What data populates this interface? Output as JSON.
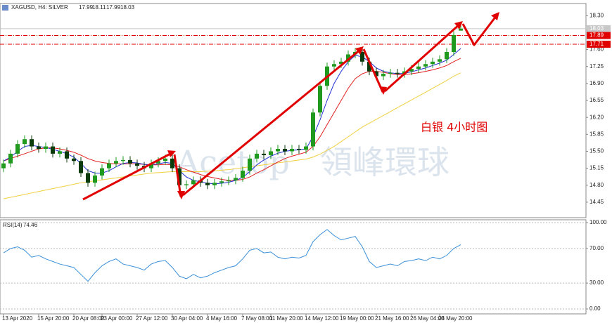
{
  "chart_data": {
    "type": "candlestick",
    "title": "XAGUSD, H4:  SILVER",
    "categories": [
      "13 Apr 2020",
      null,
      null,
      null,
      null,
      "15 Apr 20:00",
      null,
      null,
      null,
      null,
      "20 Apr 08:00",
      null,
      null,
      null,
      "23 Apr 00:00",
      null,
      null,
      null,
      null,
      "27 Apr 12:00",
      null,
      null,
      null,
      null,
      "30 Apr 04:00",
      null,
      null,
      null,
      null,
      "4 May 16:00",
      null,
      null,
      null,
      null,
      "7 May 08:00",
      null,
      null,
      null,
      "11 May 20:00",
      null,
      null,
      null,
      null,
      "14 May 12:00",
      null,
      null,
      null,
      null,
      "19 May 00:00",
      null,
      null,
      null,
      null,
      "21 May 16:00",
      null,
      null,
      null,
      null,
      "26 May 04:00",
      null,
      null,
      null,
      "28 May 20:00",
      null,
      null,
      null
    ],
    "open": [
      15.15,
      15.25,
      15.45,
      15.65,
      15.75,
      15.6,
      15.55,
      15.6,
      15.45,
      15.5,
      15.35,
      15.3,
      15.05,
      14.85,
      15.0,
      15.15,
      15.25,
      15.3,
      15.32,
      15.25,
      15.2,
      15.15,
      15.25,
      15.3,
      15.35,
      15.15,
      14.8,
      14.82,
      14.9,
      14.85,
      14.8,
      14.85,
      14.88,
      14.9,
      14.95,
      15.1,
      15.35,
      15.45,
      15.42,
      15.5,
      15.55,
      15.5,
      15.55,
      15.53,
      15.6,
      16.3,
      16.85,
      17.25,
      17.3,
      17.35,
      17.5,
      17.55,
      17.35,
      17.15,
      17.05,
      17.1,
      17.12,
      17.1,
      17.15,
      17.2,
      17.25,
      17.3,
      17.35,
      17.4,
      17.55,
      17.99
    ],
    "high": [
      15.33,
      15.53,
      15.73,
      15.83,
      15.83,
      15.68,
      15.68,
      15.68,
      15.58,
      15.58,
      15.43,
      15.38,
      15.13,
      15.08,
      15.23,
      15.33,
      15.38,
      15.4,
      15.4,
      15.33,
      15.28,
      15.33,
      15.38,
      15.43,
      15.43,
      15.23,
      14.9,
      14.98,
      14.98,
      14.93,
      14.93,
      14.96,
      14.98,
      15.03,
      15.18,
      15.43,
      15.53,
      15.53,
      15.58,
      15.63,
      15.63,
      15.63,
      15.63,
      15.68,
      16.38,
      16.93,
      17.33,
      17.38,
      17.43,
      17.58,
      17.63,
      17.63,
      17.43,
      17.23,
      17.18,
      17.2,
      17.2,
      17.23,
      17.28,
      17.33,
      17.38,
      17.43,
      17.48,
      17.63,
      17.98,
      18.11
    ],
    "low": [
      15.07,
      15.17,
      15.37,
      15.57,
      15.52,
      15.47,
      15.47,
      15.37,
      15.37,
      15.27,
      15.22,
      14.97,
      14.77,
      14.77,
      14.92,
      15.07,
      15.17,
      15.22,
      15.17,
      15.12,
      15.07,
      15.07,
      15.17,
      15.22,
      15.07,
      14.72,
      14.72,
      14.74,
      14.77,
      14.72,
      14.72,
      14.77,
      14.8,
      14.82,
      14.87,
      15.02,
      15.27,
      15.34,
      15.34,
      15.42,
      15.42,
      15.42,
      15.45,
      15.45,
      15.52,
      16.22,
      16.77,
      17.17,
      17.22,
      17.27,
      17.42,
      17.27,
      17.07,
      16.97,
      16.97,
      17.02,
      17.02,
      17.02,
      17.07,
      17.12,
      17.17,
      17.22,
      17.27,
      17.32,
      17.47,
      17.99
    ],
    "close": [
      15.25,
      15.45,
      15.65,
      15.75,
      15.6,
      15.55,
      15.6,
      15.45,
      15.5,
      15.35,
      15.3,
      15.05,
      14.85,
      15.0,
      15.15,
      15.25,
      15.3,
      15.32,
      15.25,
      15.2,
      15.15,
      15.25,
      15.3,
      15.35,
      15.15,
      14.8,
      14.82,
      14.9,
      14.85,
      14.8,
      14.85,
      14.88,
      14.9,
      14.95,
      15.1,
      15.35,
      15.45,
      15.42,
      15.5,
      15.55,
      15.5,
      15.55,
      15.53,
      15.6,
      16.3,
      16.85,
      17.25,
      17.3,
      17.35,
      17.5,
      17.55,
      17.35,
      17.15,
      17.05,
      17.1,
      17.12,
      17.1,
      17.15,
      17.2,
      17.25,
      17.3,
      17.35,
      17.4,
      17.55,
      17.9,
      18.03
    ],
    "up_color": "#1f9a1f",
    "down_color": "#0b3b0b",
    "overlays": [
      {
        "color": "#f0d040",
        "values": [
          14.52,
          14.55,
          14.58,
          14.61,
          14.64,
          14.67,
          14.7,
          14.73,
          14.76,
          14.79,
          14.82,
          14.85,
          14.87,
          14.89,
          14.91,
          14.93,
          14.95,
          14.97,
          14.99,
          15.01,
          15.03,
          15.05,
          15.06,
          15.07,
          15.08,
          15.08,
          15.08,
          15.08,
          15.08,
          15.09,
          15.1,
          15.11,
          15.12,
          15.14,
          15.16,
          15.18,
          15.2,
          15.22,
          15.24,
          15.26,
          15.28,
          15.3,
          15.32,
          15.34,
          15.38,
          15.44,
          15.52,
          15.6,
          15.7,
          15.8,
          15.9,
          16.0,
          16.08,
          16.16,
          16.24,
          16.32,
          16.4,
          16.48,
          16.56,
          16.64,
          16.72,
          16.8,
          16.88,
          16.96,
          17.05,
          17.12
        ]
      },
      {
        "color": "#e02020",
        "values": [
          15.3,
          15.35,
          15.4,
          15.45,
          15.5,
          15.55,
          15.57,
          15.57,
          15.55,
          15.52,
          15.48,
          15.42,
          15.35,
          15.3,
          15.27,
          15.25,
          15.24,
          15.24,
          15.24,
          15.24,
          15.23,
          15.22,
          15.22,
          15.23,
          15.22,
          15.18,
          15.12,
          15.07,
          15.02,
          14.98,
          14.95,
          14.92,
          14.9,
          14.9,
          14.92,
          14.97,
          15.05,
          15.12,
          15.2,
          15.28,
          15.35,
          15.4,
          15.44,
          15.48,
          15.6,
          15.8,
          16.05,
          16.3,
          16.55,
          16.8,
          17.0,
          17.1,
          17.15,
          17.15,
          17.13,
          17.1,
          17.08,
          17.08,
          17.1,
          17.12,
          17.15,
          17.18,
          17.22,
          17.27,
          17.35,
          17.42
        ]
      },
      {
        "color": "#1f2fd0",
        "values": [
          15.3,
          15.38,
          15.5,
          15.6,
          15.62,
          15.6,
          15.58,
          15.54,
          15.5,
          15.45,
          15.38,
          15.25,
          15.1,
          15.05,
          15.05,
          15.1,
          15.18,
          15.25,
          15.27,
          15.26,
          15.23,
          15.22,
          15.24,
          15.27,
          15.25,
          15.1,
          14.97,
          14.9,
          14.87,
          14.84,
          14.83,
          14.84,
          14.86,
          14.9,
          14.96,
          15.08,
          15.22,
          15.32,
          15.4,
          15.46,
          15.5,
          15.52,
          15.53,
          15.55,
          15.8,
          16.15,
          16.55,
          16.9,
          17.15,
          17.35,
          17.48,
          17.45,
          17.35,
          17.22,
          17.15,
          17.12,
          17.1,
          17.11,
          17.14,
          17.18,
          17.22,
          17.27,
          17.32,
          17.38,
          17.5,
          17.62
        ]
      }
    ],
    "ylim": [
      14.13,
      18.55
    ],
    "yticks": [
      {
        "value": 18.3,
        "label": "18.30"
      },
      {
        "value": 17.6,
        "label": "17.60"
      },
      {
        "value": 17.25,
        "label": "17.25"
      },
      {
        "value": 16.9,
        "label": "16.90"
      },
      {
        "value": 16.55,
        "label": "16.55"
      },
      {
        "value": 16.2,
        "label": "16.20"
      },
      {
        "value": 15.85,
        "label": "15.85"
      },
      {
        "value": 15.5,
        "label": "15.50"
      },
      {
        "value": 15.15,
        "label": "15.15"
      },
      {
        "value": 14.8,
        "label": "14.80"
      },
      {
        "value": 14.45,
        "label": "14.45"
      }
    ],
    "grid": false,
    "hlines": [
      17.89,
      17.71
    ],
    "hline_color": "#e00000",
    "last_price": 18.03,
    "annotation": "白银 4小时图",
    "watermark": [
      "Acetop",
      "領峰環球"
    ],
    "indicator": {
      "type": "line",
      "name": "RSI(14)",
      "color": "#3a8fd8",
      "values": [
        65,
        70,
        72,
        68,
        60,
        62,
        58,
        55,
        52,
        50,
        48,
        40,
        32,
        42,
        50,
        55,
        58,
        52,
        50,
        48,
        45,
        52,
        55,
        56,
        48,
        38,
        35,
        40,
        36,
        38,
        42,
        45,
        48,
        50,
        58,
        68,
        70,
        65,
        66,
        60,
        58,
        60,
        59,
        62,
        78,
        86,
        92,
        85,
        80,
        82,
        84,
        72,
        55,
        48,
        50,
        52,
        50,
        55,
        56,
        58,
        56,
        60,
        58,
        62,
        70,
        74.46
      ],
      "ylim": [
        -5.7,
        103.3
      ],
      "yticks": [
        {
          "value": 100,
          "label": "100.00"
        },
        {
          "value": 70,
          "label": "70.00"
        },
        {
          "value": 30,
          "label": "30.00"
        },
        {
          "value": 0,
          "label": "0.00"
        }
      ],
      "grid": true
    }
  }
}
